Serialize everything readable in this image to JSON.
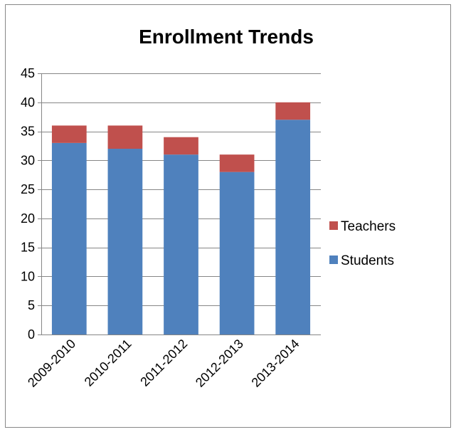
{
  "chart_data": {
    "type": "bar",
    "stacked": true,
    "title": "Enrollment Trends",
    "xlabel": "",
    "ylabel": "",
    "categories": [
      "2009-2010",
      "2010-2011",
      "2011-2012",
      "2012-2013",
      "2013-2014"
    ],
    "series": [
      {
        "name": "Students",
        "values": [
          33,
          32,
          31,
          28,
          37
        ],
        "color": "#4F81BD"
      },
      {
        "name": "Teachers",
        "values": [
          3,
          4,
          3,
          3,
          3
        ],
        "color": "#C0504D"
      }
    ],
    "ylim": [
      0,
      45
    ],
    "yticks": [
      0,
      5,
      10,
      15,
      20,
      25,
      30,
      35,
      40,
      45
    ],
    "grid": true,
    "legend": {
      "position": "right",
      "order": [
        "Teachers",
        "Students"
      ]
    }
  }
}
